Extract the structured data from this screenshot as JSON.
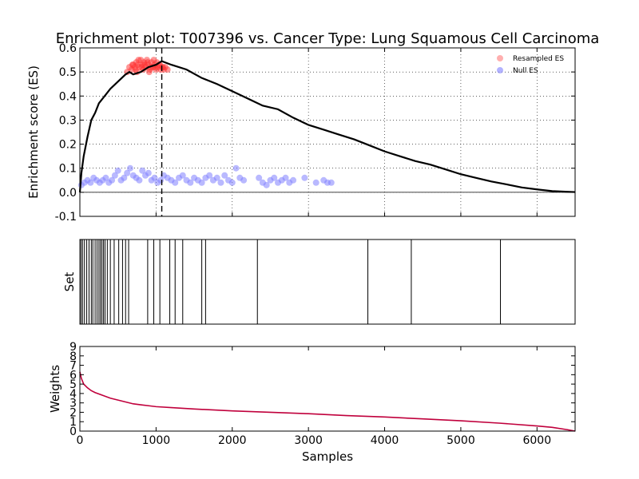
{
  "figure": {
    "title": "Enrichment plot: T007396 vs. Cancer Type: Lung Squamous Cell Carcinoma",
    "x_axis_label": "Samples"
  },
  "chart_data": [
    {
      "type": "line",
      "name": "enrichment",
      "ylabel": "Enrichment score (ES)",
      "xlim": [
        0,
        6500
      ],
      "ylim": [
        -0.1,
        0.6
      ],
      "x_ticks": [],
      "y_ticks": [
        "-0.1",
        "0.0",
        "0.1",
        "0.2",
        "0.3",
        "0.4",
        "0.5",
        "0.6"
      ],
      "y_tick_values": [
        -0.1,
        0,
        0.1,
        0.2,
        0.3,
        0.4,
        0.5,
        0.6
      ],
      "grid": true,
      "legend_position": "top-right",
      "legend": [
        {
          "label": "Resampled ES",
          "color": "#ff7a7a"
        },
        {
          "label": "Null ES",
          "color": "#8080ff"
        }
      ],
      "max_es_position": 1075,
      "es_curve": {
        "x": [
          0,
          20,
          50,
          100,
          150,
          200,
          250,
          300,
          350,
          400,
          500,
          600,
          650,
          700,
          800,
          900,
          1000,
          1075,
          1200,
          1400,
          1600,
          1800,
          2000,
          2200,
          2400,
          2600,
          2800,
          3000,
          3200,
          3400,
          3600,
          3800,
          4000,
          4200,
          4400,
          4600,
          4800,
          5000,
          5200,
          5400,
          5600,
          5800,
          6000,
          6200,
          6400,
          6500
        ],
        "y": [
          0,
          0.08,
          0.15,
          0.23,
          0.3,
          0.33,
          0.37,
          0.39,
          0.41,
          0.43,
          0.46,
          0.49,
          0.5,
          0.49,
          0.5,
          0.52,
          0.53,
          0.545,
          0.53,
          0.51,
          0.475,
          0.45,
          0.42,
          0.39,
          0.36,
          0.345,
          0.31,
          0.28,
          0.26,
          0.24,
          0.22,
          0.195,
          0.17,
          0.15,
          0.13,
          0.115,
          0.095,
          0.075,
          0.06,
          0.045,
          0.033,
          0.02,
          0.012,
          0.005,
          0.002,
          0.001
        ]
      },
      "resampled_es": {
        "x": [
          620,
          650,
          680,
          700,
          720,
          740,
          760,
          780,
          800,
          820,
          840,
          860,
          880,
          900,
          920,
          940,
          960,
          980,
          1000,
          1020,
          1040,
          1060,
          1080,
          1100,
          1120,
          1150,
          690,
          730,
          770,
          810,
          850,
          890,
          930,
          970,
          1010,
          1050,
          1090,
          750,
          830,
          910,
          990
        ],
        "y": [
          0.5,
          0.52,
          0.51,
          0.53,
          0.52,
          0.54,
          0.53,
          0.52,
          0.55,
          0.53,
          0.54,
          0.52,
          0.55,
          0.53,
          0.51,
          0.54,
          0.52,
          0.53,
          0.51,
          0.52,
          0.53,
          0.51,
          0.52,
          0.51,
          0.52,
          0.51,
          0.53,
          0.51,
          0.55,
          0.52,
          0.53,
          0.54,
          0.52,
          0.55,
          0.54,
          0.53,
          0.52,
          0.5,
          0.51,
          0.5,
          0.52
        ]
      },
      "null_es": {
        "x": [
          20,
          60,
          100,
          140,
          180,
          220,
          260,
          300,
          340,
          380,
          420,
          460,
          500,
          540,
          580,
          620,
          660,
          700,
          740,
          780,
          820,
          860,
          900,
          940,
          980,
          1020,
          1060,
          1100,
          1150,
          1200,
          1250,
          1300,
          1350,
          1400,
          1450,
          1500,
          1550,
          1600,
          1650,
          1700,
          1750,
          1800,
          1850,
          1900,
          1950,
          2000,
          2050,
          2100,
          2150,
          2350,
          2400,
          2450,
          2500,
          2550,
          2600,
          2650,
          2700,
          2750,
          2800,
          2950,
          3100,
          3200,
          3250,
          3300
        ],
        "y": [
          0.03,
          0.04,
          0.05,
          0.04,
          0.06,
          0.05,
          0.04,
          0.05,
          0.06,
          0.04,
          0.05,
          0.07,
          0.09,
          0.05,
          0.06,
          0.08,
          0.1,
          0.07,
          0.06,
          0.05,
          0.09,
          0.07,
          0.08,
          0.05,
          0.06,
          0.04,
          0.05,
          0.07,
          0.06,
          0.05,
          0.04,
          0.06,
          0.07,
          0.05,
          0.04,
          0.06,
          0.05,
          0.04,
          0.06,
          0.07,
          0.05,
          0.06,
          0.04,
          0.07,
          0.05,
          0.04,
          0.1,
          0.06,
          0.05,
          0.06,
          0.04,
          0.03,
          0.05,
          0.06,
          0.04,
          0.05,
          0.06,
          0.04,
          0.05,
          0.06,
          0.04,
          0.05,
          0.04,
          0.04
        ]
      }
    },
    {
      "type": "barcode",
      "name": "gene_set_positions",
      "ylabel": "Set",
      "xlim": [
        0,
        6500
      ],
      "positions": [
        15,
        35,
        60,
        90,
        120,
        150,
        170,
        200,
        225,
        250,
        270,
        290,
        310,
        330,
        360,
        400,
        450,
        510,
        560,
        600,
        640,
        890,
        970,
        1050,
        1180,
        1250,
        1350,
        1600,
        1650,
        2330,
        3780,
        4350,
        5520
      ]
    },
    {
      "type": "line",
      "name": "weights",
      "ylabel": "Weights",
      "xlim": [
        0,
        6500
      ],
      "ylim": [
        0,
        9
      ],
      "x_ticks": [
        "0",
        "1000",
        "2000",
        "3000",
        "4000",
        "5000",
        "6000"
      ],
      "x_tick_values": [
        0,
        1000,
        2000,
        3000,
        4000,
        5000,
        6000
      ],
      "y_ticks": [
        "0",
        "1",
        "2",
        "3",
        "4",
        "5",
        "6",
        "7",
        "8",
        "9"
      ],
      "y_tick_values": [
        0,
        1,
        2,
        3,
        4,
        5,
        6,
        7,
        8,
        9
      ],
      "color": "#c0003c",
      "weights_curve": {
        "x": [
          0,
          20,
          50,
          100,
          150,
          200,
          300,
          400,
          500,
          600,
          700,
          800,
          1000,
          1200,
          1500,
          2000,
          2500,
          3000,
          3500,
          4000,
          4500,
          5000,
          5500,
          6000,
          6200,
          6400,
          6500
        ],
        "y": [
          6.3,
          5.6,
          5.0,
          4.6,
          4.3,
          4.1,
          3.8,
          3.5,
          3.3,
          3.1,
          2.9,
          2.8,
          2.6,
          2.5,
          2.35,
          2.15,
          2.0,
          1.85,
          1.65,
          1.5,
          1.3,
          1.1,
          0.85,
          0.55,
          0.4,
          0.15,
          0.0
        ]
      }
    }
  ]
}
